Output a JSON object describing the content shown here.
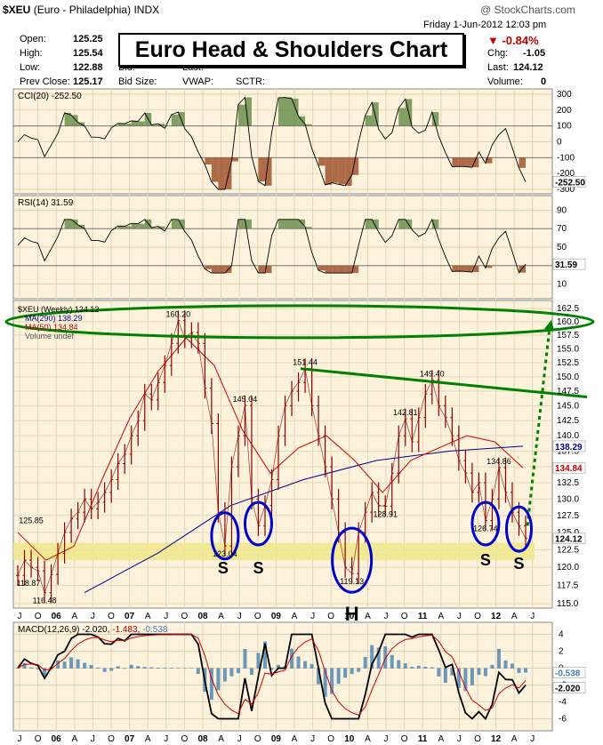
{
  "header": {
    "symbol": "$XEU",
    "name": "(Euro - Philadelphia)",
    "exchange": "INDX",
    "watermark": "@ StockCharts.com",
    "date": "Friday   1-Jun-2012 12:03 pm",
    "open_label": "Open:",
    "open": "125.25",
    "high_label": "High:",
    "high": "125.54",
    "low_label": "Low:",
    "low": "122.88",
    "prev_label": "Prev Close:",
    "prev": "125.17",
    "bid_label": "Bid:",
    "bidsize_label": "Bid Size:",
    "last_label": "Last:",
    "vwap_label": "VWAP:",
    "sctr_label": "SCTR:",
    "change_pct": "▼ -0.84%",
    "chg_label": "Chg:",
    "chg": "-1.05",
    "last2_label": "Last:",
    "last": "124.12",
    "volume_label": "Volume:",
    "volume": "0",
    "title_box": "Euro Head & Shoulders Chart"
  },
  "colors": {
    "price": "#8b0000",
    "ma290": "#00008b",
    "ma50": "#d00000",
    "oscillator_positive": "#6b8e4e",
    "oscillator_negative": "#a0522d",
    "panel_bg": "#fdf3dc",
    "support_band": "#f0e68c",
    "annotation_green": "#008000",
    "annotation_blue": "#0000cd"
  },
  "cci": {
    "label": "CCI(20) -252.50",
    "ticks": [
      "300",
      "200",
      "100",
      "0",
      "-100",
      "-200",
      "-300"
    ],
    "last_tag": "-252.50",
    "pos_ref": "200"
  },
  "rsi": {
    "label": "RSI(14) 31.59",
    "ticks": [
      "90",
      "70",
      "50",
      "30",
      "10"
    ],
    "last_tag": "31.59"
  },
  "price_panel": {
    "legend": [
      "$XEU (Weekly) 124.12",
      "MA(290) 138.29",
      "MA(50) 134.84",
      "Volume undef"
    ],
    "ticks": [
      "162.5",
      "160.0",
      "157.5",
      "155.0",
      "152.5",
      "150.0",
      "147.5",
      "145.0",
      "142.5",
      "140.0",
      "137.5",
      "135.0",
      "132.5",
      "130.0",
      "127.5",
      "125.0",
      "122.5",
      "120.0",
      "117.5",
      "115.0"
    ],
    "tag_ma290": "138.29",
    "tag_ma50": "134.84",
    "tag_last": "124.12",
    "peak_labels": [
      "160.20",
      "151.44",
      "149.40",
      "145.04",
      "142.81",
      "134.86",
      "128.91",
      "126.74",
      "125.85",
      "123.04",
      "119.13",
      "118.87",
      "116.48"
    ],
    "pattern_labels": [
      "S",
      "S",
      "H",
      "S",
      "S"
    ]
  },
  "x_axis_labels": [
    "J",
    "O",
    "06",
    "A",
    "J",
    "O",
    "07",
    "A",
    "J",
    "O",
    "08",
    "A",
    "J",
    "O",
    "09",
    "A",
    "J",
    "O",
    "10",
    "A",
    "J",
    "O",
    "11",
    "A",
    "J",
    "O",
    "12",
    "A",
    "J"
  ],
  "macd": {
    "label": "MACD(12,26,9) -2.020, -1.483, -0.538",
    "label_main": "MACD(12,26,9) -2.020, ",
    "label_signal": "-1.483",
    "label_sep": ", ",
    "label_hist": "-0.538",
    "ticks": [
      "4",
      "2",
      "0",
      "-2",
      "-4",
      "-6"
    ],
    "tag_hist": "-0.538",
    "tag_main": "-2.020"
  },
  "chart_data": {
    "type": "line",
    "title": "Euro Head & Shoulders Chart",
    "timeframe": "Weekly, 2005 to 2012",
    "ylim": [
      115,
      162.5
    ],
    "y_scale": "log",
    "grid": true,
    "legend_placement": "top-left",
    "series": [
      {
        "name": "$XEU (Weekly)",
        "values": [
          118.87,
          121,
          120,
          119.5,
          116.48,
          119,
          122,
          125,
          127,
          128,
          130,
          128.5,
          129.5,
          131,
          133,
          135.5,
          137,
          140,
          142.5,
          147,
          146,
          149,
          152,
          156,
          160.2,
          157,
          158,
          156,
          148,
          142,
          128,
          123.04,
          135,
          140,
          145.04,
          130,
          126,
          129,
          133,
          140,
          145,
          147.5,
          149,
          151.44,
          145,
          140,
          135,
          130,
          125,
          120,
          119.13,
          125,
          128,
          131,
          129,
          128.91,
          134,
          140,
          142.81,
          139,
          143,
          147,
          149.4,
          145,
          143,
          140,
          136,
          134,
          131,
          132.5,
          126.74,
          130,
          134.86,
          131,
          128,
          126,
          124.12
        ]
      },
      {
        "name": "MA(290)",
        "values": [
          116.5,
          122,
          129,
          133,
          136,
          137.5,
          138.29
        ]
      },
      {
        "name": "MA(50)",
        "values": [
          125,
          121,
          123,
          133,
          143,
          151,
          157,
          152,
          141,
          134,
          138,
          140,
          136,
          131,
          136,
          138,
          140,
          139,
          134.84
        ]
      }
    ],
    "annotations": {
      "left_shoulders": [
        123.04,
        126.5
      ],
      "head": 119.13,
      "right_shoulders": [
        126.74,
        124.12
      ],
      "neckline_from": 151.44,
      "neckline_to": 146.5,
      "top_line": 160.0,
      "support_band": [
        121.0,
        123.5
      ],
      "projected_target": 160.0
    }
  }
}
